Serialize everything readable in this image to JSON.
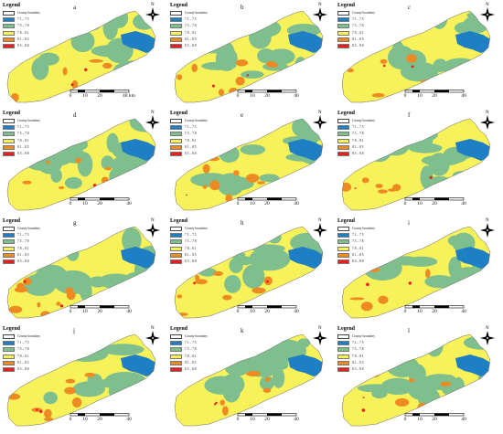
{
  "legend": {
    "title": "Legend",
    "county_boundary": "County boundary",
    "classes": [
      {
        "label": "7.1 – 7.5",
        "color": "#1f7fc4"
      },
      {
        "label": "7.5 – 7.8",
        "color": "#7fbf8e"
      },
      {
        "label": "7.8 – 8.1",
        "color": "#f7f15a"
      },
      {
        "label": "8.1 – 8.5",
        "color": "#ee8a22"
      },
      {
        "label": "8.5 – 8.8",
        "color": "#ee1c1c"
      }
    ]
  },
  "north_label": "N",
  "scale_ticks": [
    "0",
    "10",
    "20",
    "40"
  ],
  "scale_unit_first": "km",
  "panels": [
    {
      "id": "a",
      "green": 0.45,
      "orange": 0.03
    },
    {
      "id": "b",
      "green": 0.4,
      "orange": 0.1
    },
    {
      "id": "c",
      "green": 0.3,
      "orange": 0.05
    },
    {
      "id": "d",
      "green": 0.4,
      "orange": 0.08
    },
    {
      "id": "e",
      "green": 0.4,
      "orange": 0.1
    },
    {
      "id": "f",
      "green": 0.5,
      "orange": 0.05
    },
    {
      "id": "g",
      "green": 0.35,
      "orange": 0.1
    },
    {
      "id": "h",
      "green": 0.3,
      "orange": 0.1
    },
    {
      "id": "i",
      "green": 0.35,
      "orange": 0.1
    },
    {
      "id": "j",
      "green": 0.3,
      "orange": 0.12
    },
    {
      "id": "k",
      "green": 0.45,
      "orange": 0.03
    },
    {
      "id": "l",
      "green": 0.45,
      "orange": 0.03
    }
  ]
}
